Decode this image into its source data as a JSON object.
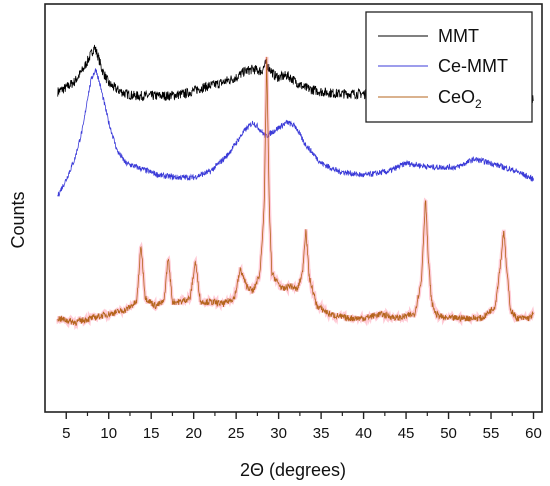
{
  "chart_data": {
    "type": "line",
    "xlabel": "2Θ (degrees)",
    "ylabel": "Counts",
    "xlim": [
      2.5,
      61
    ],
    "xticks": [
      5,
      10,
      15,
      20,
      25,
      30,
      35,
      40,
      45,
      50,
      55,
      60
    ],
    "ylim": [
      0,
      100
    ],
    "legend_position": "top-right",
    "series": [
      {
        "name": "MMT",
        "color": "#000000",
        "x": [
          4,
          5,
          6,
          7,
          7.5,
          8,
          8.3,
          8.7,
          9.2,
          10,
          11,
          12,
          13,
          15,
          17,
          19,
          21,
          23,
          25,
          26,
          27,
          28,
          28.5,
          29.5,
          30,
          31,
          32,
          33,
          35,
          37,
          40,
          43,
          46,
          50,
          53,
          56,
          58,
          60
        ],
        "y": [
          78.5,
          79.5,
          81,
          84,
          86,
          88,
          89.5,
          87.5,
          84,
          80.5,
          79,
          78,
          77.5,
          77.5,
          77.5,
          78,
          79.5,
          80.5,
          82,
          83.5,
          84,
          83.5,
          85.5,
          82.5,
          82,
          82.5,
          81,
          79.5,
          78.5,
          78,
          78,
          77.5,
          77.5,
          77.5,
          77.5,
          77.5,
          77,
          76.5
        ]
      },
      {
        "name": "Ce-MMT",
        "color": "#3b3bd8",
        "x": [
          4,
          5,
          6,
          7,
          7.5,
          8,
          8.5,
          9,
          10,
          11,
          12,
          14,
          16,
          18,
          20,
          22,
          24,
          25,
          26,
          27,
          27.5,
          28.5,
          29.5,
          31,
          32,
          33,
          35,
          37,
          40,
          43,
          45,
          48,
          51,
          53,
          55,
          58,
          60
        ],
        "y": [
          53,
          57,
          62,
          70,
          77,
          82,
          84,
          80,
          71,
          64,
          61,
          59.5,
          58,
          57.5,
          57.5,
          59,
          63,
          66,
          69,
          71,
          70,
          67.5,
          69,
          71,
          70,
          66,
          61,
          59,
          58,
          59,
          61,
          60,
          60,
          62,
          61,
          59,
          57
        ]
      },
      {
        "name": "CeO2",
        "color": "#b5651d",
        "x": [
          4,
          6,
          8,
          10,
          12,
          13.3,
          13.8,
          14.3,
          15.5,
          16.5,
          17,
          17.5,
          18.5,
          19.6,
          20.2,
          20.8,
          22,
          23.5,
          24.8,
          25.5,
          26.2,
          27,
          27.8,
          28.3,
          28.6,
          28.9,
          29.2,
          29.8,
          30.5,
          31.3,
          32.2,
          32.8,
          33.2,
          33.6,
          34.5,
          36,
          38,
          40,
          42,
          44,
          46,
          46.8,
          47.3,
          47.6,
          48,
          48.5,
          49.5,
          52,
          54,
          55.5,
          56.2,
          56.5,
          56.8,
          57.3,
          58,
          59.5,
          60
        ],
        "y": [
          23,
          22,
          23,
          24,
          25,
          27,
          41,
          28,
          26,
          27,
          38,
          27,
          27,
          28,
          37,
          27,
          27,
          26.5,
          28,
          35,
          31,
          29.5,
          34,
          50,
          87,
          50,
          34,
          32,
          30,
          31,
          30,
          34,
          45,
          33,
          26,
          24,
          23,
          23,
          24,
          23,
          24,
          32,
          53,
          38,
          27,
          24,
          23,
          23,
          23,
          26,
          38,
          45,
          36,
          25,
          23,
          23,
          24
        ]
      }
    ]
  }
}
